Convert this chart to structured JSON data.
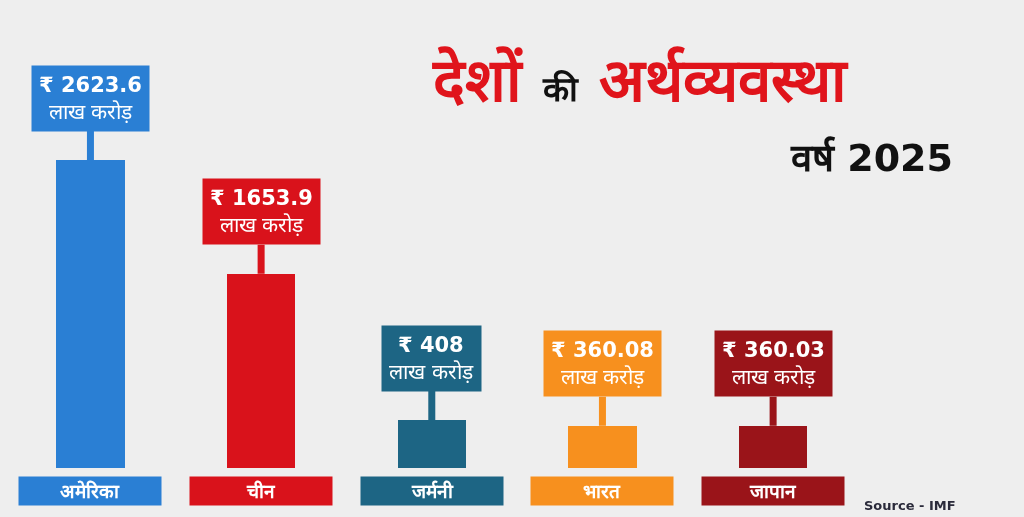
{
  "chart_data": {
    "type": "bar",
    "title": "देशों की अर्थव्यवस्था",
    "subtitle": "वर्ष 2025",
    "categories": [
      "अमेरिका",
      "चीन",
      "जर्मनी",
      "भारत",
      "जापान"
    ],
    "values": [
      2623.6,
      1653.9,
      408,
      360.08,
      360.03
    ],
    "colors": [
      "#2a7fd4",
      "#d9121b",
      "#1d6584",
      "#f7901e",
      "#9a1419"
    ],
    "value_labels": [
      "₹ 2623.6\nलाख करोड़",
      "₹ 1653.9\nलाख करोड़",
      "₹ 408\nलाख करोड़",
      "₹ 360.08\nलाख करोड़",
      "₹ 360.03\nलाख करोड़"
    ],
    "annotations": [
      "Source - IMF"
    ]
  }
}
